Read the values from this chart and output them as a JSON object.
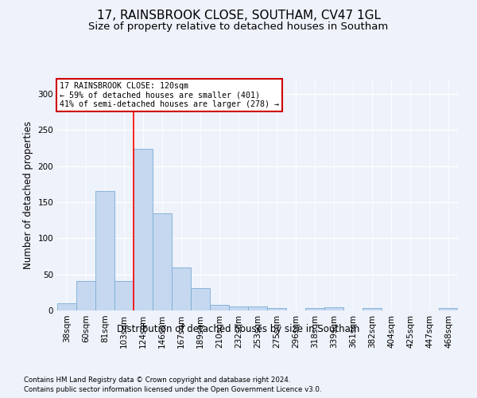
{
  "title": "17, RAINSBROOK CLOSE, SOUTHAM, CV47 1GL",
  "subtitle": "Size of property relative to detached houses in Southam",
  "xlabel": "Distribution of detached houses by size in Southam",
  "ylabel": "Number of detached properties",
  "categories": [
    "38sqm",
    "60sqm",
    "81sqm",
    "103sqm",
    "124sqm",
    "146sqm",
    "167sqm",
    "189sqm",
    "210sqm",
    "232sqm",
    "253sqm",
    "275sqm",
    "296sqm",
    "318sqm",
    "339sqm",
    "361sqm",
    "382sqm",
    "404sqm",
    "425sqm",
    "447sqm",
    "468sqm"
  ],
  "values": [
    10,
    41,
    165,
    41,
    224,
    135,
    60,
    31,
    8,
    5,
    5,
    3,
    0,
    3,
    4,
    0,
    3,
    0,
    0,
    0,
    3
  ],
  "bar_color": "#c5d8f0",
  "bar_edge_color": "#7aadd4",
  "red_line_x": 3.5,
  "red_line_label": "17 RAINSBROOK CLOSE: 120sqm",
  "annotation_line1": "← 59% of detached houses are smaller (401)",
  "annotation_line2": "41% of semi-detached houses are larger (278) →",
  "annotation_box_color": "#ffffff",
  "annotation_box_edge": "#cc0000",
  "footer1": "Contains HM Land Registry data © Crown copyright and database right 2024.",
  "footer2": "Contains public sector information licensed under the Open Government Licence v3.0.",
  "ylim": [
    0,
    320
  ],
  "yticks": [
    0,
    50,
    100,
    150,
    200,
    250,
    300
  ],
  "background_color": "#eef2fa",
  "plot_background_color": "#eef2fa",
  "title_fontsize": 11,
  "subtitle_fontsize": 9.5,
  "tick_fontsize": 7.5,
  "label_fontsize": 8.5,
  "footer_fontsize": 6.2
}
